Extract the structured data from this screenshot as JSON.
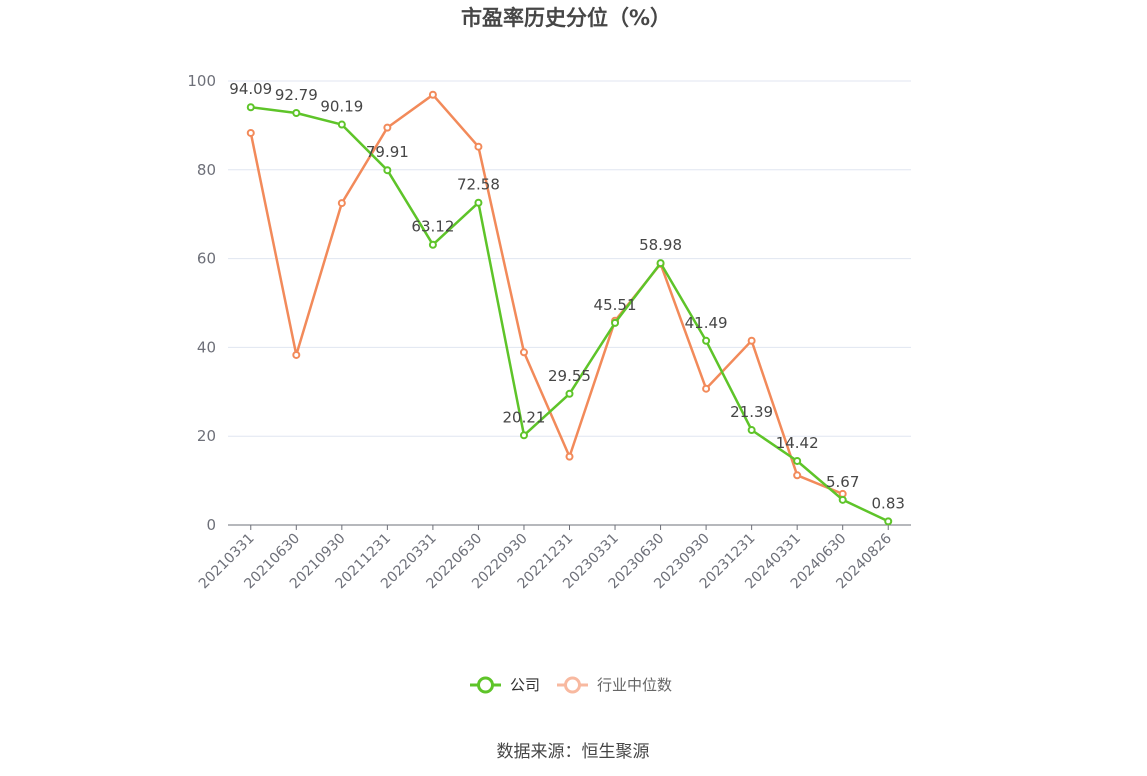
{
  "chart_data": {
    "type": "line",
    "title": "市盈率历史分位（%）",
    "categories": [
      "20210331",
      "20210630",
      "20210930",
      "20211231",
      "20220331",
      "20220630",
      "20220930",
      "20221231",
      "20230331",
      "20230630",
      "20230930",
      "20231231",
      "20240331",
      "20240630",
      "20240826"
    ],
    "series": [
      {
        "name": "公司",
        "color": "#5ec429",
        "values": [
          94.09,
          92.79,
          90.19,
          79.91,
          63.12,
          72.58,
          20.21,
          29.55,
          45.51,
          58.98,
          41.49,
          21.39,
          14.42,
          5.67,
          0.83
        ],
        "labels": [
          "94.09",
          "92.79",
          "90.19",
          "79.91",
          "63.12",
          "72.58",
          "20.21",
          "29.55",
          "45.51",
          "58.98",
          "41.49",
          "21.39",
          "14.42",
          "5.67",
          "0.83"
        ]
      },
      {
        "name": "行业中位数",
        "color": "#f28a5a",
        "legend_color": "#f8b9a0",
        "values": [
          88.3,
          38.3,
          72.5,
          89.5,
          96.9,
          85.2,
          38.9,
          15.4,
          46.0,
          58.8,
          30.7,
          41.5,
          11.2,
          7.0,
          null
        ]
      }
    ],
    "yticks": [
      "0",
      "20",
      "40",
      "60",
      "80",
      "100"
    ],
    "ylim": [
      0,
      100
    ],
    "grid": true,
    "legend_position": "bottom-center"
  },
  "source": "数据来源：恒生聚源"
}
